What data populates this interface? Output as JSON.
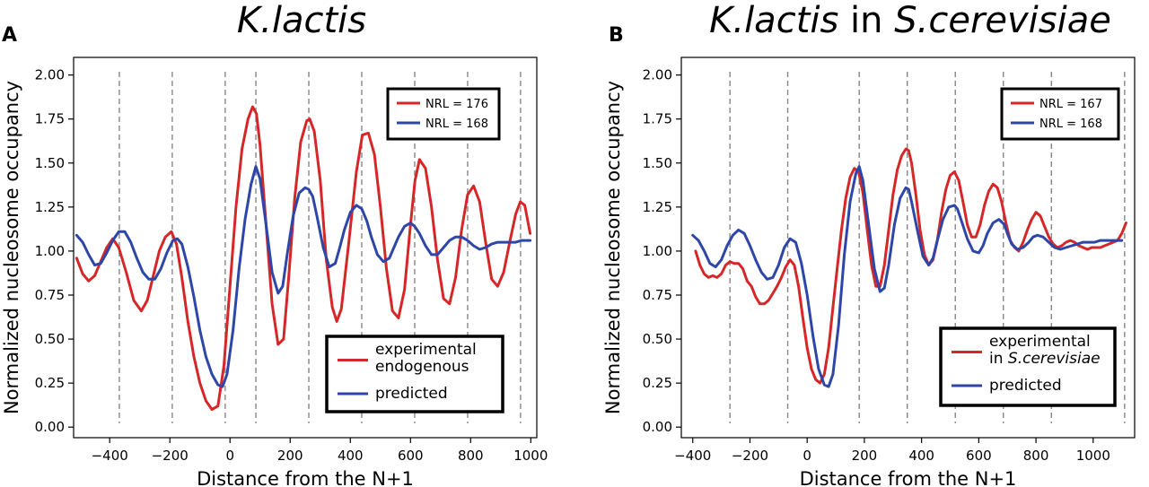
{
  "figure_title": "Nucleosome occupancy profiles",
  "chart_data": [
    {
      "type": "line",
      "panel_label": "A",
      "title_parts": [
        {
          "text": "K.lactis",
          "italic": true
        }
      ],
      "xlabel": "Distance from the N+1",
      "ylabel": "Normalized nucleosome occupancy",
      "xlim": [
        -520,
        1020
      ],
      "ylim": [
        -0.06,
        2.1
      ],
      "xticks": [
        -400,
        -200,
        0,
        200,
        400,
        600,
        800,
        1000
      ],
      "xtick_labels": [
        "−400",
        "−200",
        "0",
        "200",
        "400",
        "600",
        "800",
        "1000"
      ],
      "yticks": [
        0.0,
        0.25,
        0.5,
        0.75,
        1.0,
        1.25,
        1.5,
        1.75,
        2.0
      ],
      "ytick_labels": [
        "0.00",
        "0.25",
        "0.50",
        "0.75",
        "1.00",
        "1.25",
        "1.50",
        "1.75",
        "2.00"
      ],
      "vlines": [
        -368,
        -192,
        -16,
        86,
        262,
        438,
        614,
        790,
        966
      ],
      "nrl_legend": [
        {
          "label": "NRL = 176",
          "color": "#d62728"
        },
        {
          "label": "NRL = 168",
          "color": "#2e46a8"
        }
      ],
      "series": [
        {
          "name": "experimental",
          "legend_lines": [
            {
              "parts": [
                {
                  "text": "experimental",
                  "italic": false
                }
              ]
            },
            {
              "parts": [
                {
                  "text": "endogenous",
                  "italic": false
                }
              ]
            }
          ],
          "color": "#d62728",
          "x": [
            -510,
            -490,
            -470,
            -450,
            -430,
            -410,
            -390,
            -370,
            -345,
            -320,
            -295,
            -275,
            -255,
            -235,
            -215,
            -195,
            -178,
            -160,
            -140,
            -120,
            -100,
            -80,
            -60,
            -40,
            -20,
            0,
            20,
            40,
            60,
            75,
            88,
            100,
            120,
            140,
            160,
            178,
            195,
            215,
            235,
            255,
            265,
            280,
            300,
            320,
            340,
            355,
            370,
            395,
            420,
            440,
            460,
            480,
            500,
            520,
            540,
            560,
            580,
            600,
            615,
            630,
            650,
            670,
            690,
            710,
            730,
            750,
            770,
            790,
            810,
            830,
            850,
            870,
            890,
            910,
            930,
            950,
            965,
            980,
            998
          ],
          "values": [
            0.96,
            0.87,
            0.83,
            0.86,
            0.94,
            1.02,
            1.07,
            1.02,
            0.88,
            0.72,
            0.66,
            0.72,
            0.86,
            1.0,
            1.08,
            1.11,
            1.04,
            0.85,
            0.6,
            0.4,
            0.25,
            0.15,
            0.1,
            0.12,
            0.35,
            0.8,
            1.25,
            1.58,
            1.75,
            1.82,
            1.78,
            1.6,
            1.15,
            0.7,
            0.47,
            0.5,
            0.85,
            1.3,
            1.62,
            1.74,
            1.75,
            1.68,
            1.4,
            0.95,
            0.68,
            0.6,
            0.67,
            1.05,
            1.45,
            1.66,
            1.67,
            1.55,
            1.25,
            0.9,
            0.66,
            0.62,
            0.78,
            1.15,
            1.4,
            1.52,
            1.47,
            1.25,
            0.95,
            0.73,
            0.7,
            0.85,
            1.12,
            1.32,
            1.37,
            1.28,
            1.05,
            0.84,
            0.8,
            0.88,
            1.05,
            1.21,
            1.28,
            1.26,
            1.1
          ]
        },
        {
          "name": "predicted",
          "legend_lines": [
            {
              "parts": [
                {
                  "text": "predicted",
                  "italic": false
                }
              ]
            }
          ],
          "color": "#2e46a8",
          "x": [
            -510,
            -490,
            -470,
            -450,
            -430,
            -410,
            -390,
            -370,
            -350,
            -330,
            -310,
            -290,
            -270,
            -250,
            -230,
            -210,
            -190,
            -175,
            -160,
            -140,
            -120,
            -100,
            -80,
            -60,
            -40,
            -25,
            -10,
            10,
            30,
            50,
            70,
            86,
            100,
            120,
            140,
            160,
            175,
            190,
            210,
            230,
            250,
            262,
            275,
            290,
            310,
            330,
            350,
            365,
            380,
            400,
            420,
            438,
            455,
            470,
            490,
            510,
            530,
            545,
            560,
            580,
            600,
            614,
            630,
            650,
            670,
            690,
            710,
            730,
            750,
            770,
            790,
            810,
            830,
            850,
            870,
            890,
            910,
            930,
            950,
            970,
            998
          ],
          "values": [
            1.09,
            1.05,
            0.98,
            0.92,
            0.93,
            0.99,
            1.06,
            1.11,
            1.11,
            1.05,
            0.96,
            0.88,
            0.84,
            0.84,
            0.9,
            0.99,
            1.06,
            1.07,
            1.04,
            0.91,
            0.74,
            0.55,
            0.4,
            0.3,
            0.24,
            0.23,
            0.3,
            0.55,
            0.9,
            1.18,
            1.38,
            1.48,
            1.41,
            1.15,
            0.88,
            0.76,
            0.8,
            0.98,
            1.2,
            1.33,
            1.36,
            1.35,
            1.31,
            1.19,
            1.02,
            0.91,
            0.93,
            1.02,
            1.12,
            1.22,
            1.26,
            1.24,
            1.17,
            1.08,
            0.98,
            0.94,
            0.96,
            1.02,
            1.08,
            1.14,
            1.16,
            1.14,
            1.1,
            1.03,
            0.98,
            0.98,
            1.02,
            1.06,
            1.08,
            1.08,
            1.06,
            1.03,
            1.01,
            1.02,
            1.04,
            1.05,
            1.05,
            1.05,
            1.05,
            1.06,
            1.06
          ]
        }
      ]
    },
    {
      "type": "line",
      "panel_label": "B",
      "title_parts": [
        {
          "text": "K.lactis",
          "italic": true
        },
        {
          "text": " in ",
          "italic": false
        },
        {
          "text": "S.cerevisiae",
          "italic": true
        }
      ],
      "xlabel": "Distance from the N+1",
      "ylabel": "Normalized nucleosome occupancy",
      "xlim": [
        -440,
        1145
      ],
      "ylim": [
        -0.06,
        2.1
      ],
      "xticks": [
        -400,
        -200,
        0,
        200,
        400,
        600,
        800,
        1000
      ],
      "xtick_labels": [
        "−400",
        "−200",
        "0",
        "200",
        "400",
        "600",
        "800",
        "1000"
      ],
      "yticks": [
        0.0,
        0.25,
        0.5,
        0.75,
        1.0,
        1.25,
        1.5,
        1.75,
        2.0
      ],
      "ytick_labels": [
        "0.00",
        "0.25",
        "0.50",
        "0.75",
        "1.00",
        "1.25",
        "1.50",
        "1.75",
        "2.00"
      ],
      "vlines": [
        -270,
        -68,
        182,
        350,
        518,
        686,
        854,
        1110
      ],
      "nrl_legend": [
        {
          "label": "NRL = 167",
          "color": "#d62728"
        },
        {
          "label": "NRL = 168",
          "color": "#2e46a8"
        }
      ],
      "series": [
        {
          "name": "experimental",
          "legend_lines": [
            {
              "parts": [
                {
                  "text": "experimental",
                  "italic": false
                }
              ]
            },
            {
              "parts": [
                {
                  "text": "in ",
                  "italic": false
                },
                {
                  "text": "S.cerevisiae",
                  "italic": true
                }
              ]
            }
          ],
          "color": "#d62728",
          "x": [
            -390,
            -375,
            -360,
            -345,
            -330,
            -315,
            -300,
            -285,
            -270,
            -255,
            -240,
            -225,
            -210,
            -195,
            -180,
            -165,
            -150,
            -135,
            -120,
            -105,
            -90,
            -75,
            -60,
            -45,
            -30,
            -15,
            0,
            15,
            30,
            45,
            60,
            75,
            90,
            105,
            120,
            135,
            150,
            165,
            180,
            195,
            210,
            225,
            240,
            255,
            270,
            285,
            300,
            315,
            330,
            345,
            355,
            365,
            380,
            395,
            410,
            425,
            440,
            455,
            470,
            485,
            500,
            515,
            530,
            545,
            560,
            575,
            590,
            605,
            620,
            635,
            650,
            665,
            680,
            695,
            710,
            725,
            740,
            755,
            770,
            785,
            800,
            815,
            830,
            845,
            860,
            875,
            890,
            905,
            920,
            935,
            950,
            965,
            980,
            995,
            1010,
            1025,
            1040,
            1055,
            1070,
            1085,
            1100,
            1115
          ],
          "values": [
            1.0,
            0.92,
            0.87,
            0.85,
            0.86,
            0.85,
            0.87,
            0.92,
            0.94,
            0.93,
            0.93,
            0.9,
            0.83,
            0.8,
            0.74,
            0.7,
            0.7,
            0.72,
            0.76,
            0.8,
            0.85,
            0.91,
            0.95,
            0.92,
            0.8,
            0.62,
            0.45,
            0.33,
            0.27,
            0.25,
            0.3,
            0.45,
            0.68,
            0.9,
            1.12,
            1.3,
            1.42,
            1.47,
            1.45,
            1.33,
            1.12,
            0.92,
            0.8,
            0.8,
            0.92,
            1.12,
            1.32,
            1.46,
            1.54,
            1.58,
            1.57,
            1.5,
            1.32,
            1.12,
            0.98,
            0.92,
            0.95,
            1.06,
            1.22,
            1.35,
            1.43,
            1.45,
            1.4,
            1.28,
            1.15,
            1.08,
            1.08,
            1.15,
            1.26,
            1.34,
            1.38,
            1.36,
            1.28,
            1.16,
            1.06,
            1.02,
            1.0,
            1.05,
            1.12,
            1.18,
            1.22,
            1.2,
            1.14,
            1.08,
            1.04,
            1.02,
            1.03,
            1.05,
            1.06,
            1.05,
            1.03,
            1.02,
            1.01,
            1.02,
            1.02,
            1.02,
            1.03,
            1.04,
            1.05,
            1.06,
            1.1,
            1.16
          ]
        },
        {
          "name": "predicted",
          "legend_lines": [
            {
              "parts": [
                {
                  "text": "predicted",
                  "italic": false
                }
              ]
            }
          ],
          "color": "#2e46a8",
          "x": [
            -400,
            -380,
            -360,
            -340,
            -320,
            -300,
            -280,
            -260,
            -240,
            -220,
            -200,
            -180,
            -160,
            -140,
            -120,
            -100,
            -80,
            -60,
            -40,
            -20,
            0,
            20,
            40,
            60,
            75,
            90,
            110,
            130,
            150,
            170,
            182,
            195,
            215,
            235,
            255,
            270,
            285,
            305,
            325,
            345,
            355,
            365,
            385,
            405,
            425,
            440,
            455,
            475,
            495,
            515,
            525,
            540,
            560,
            580,
            600,
            615,
            630,
            650,
            670,
            690,
            700,
            715,
            735,
            755,
            775,
            790,
            805,
            825,
            845,
            865,
            885,
            905,
            925,
            945,
            965,
            985,
            1005,
            1025,
            1045,
            1065,
            1085,
            1100
          ],
          "values": [
            1.09,
            1.06,
            1.0,
            0.93,
            0.91,
            0.95,
            1.03,
            1.09,
            1.12,
            1.1,
            1.03,
            0.95,
            0.88,
            0.84,
            0.85,
            0.92,
            1.02,
            1.07,
            1.05,
            0.93,
            0.75,
            0.52,
            0.33,
            0.24,
            0.23,
            0.3,
            0.58,
            0.98,
            1.28,
            1.44,
            1.48,
            1.4,
            1.15,
            0.9,
            0.77,
            0.79,
            0.92,
            1.15,
            1.3,
            1.36,
            1.35,
            1.28,
            1.12,
            0.97,
            0.92,
            0.96,
            1.06,
            1.18,
            1.25,
            1.26,
            1.24,
            1.17,
            1.07,
            1.0,
            0.99,
            1.03,
            1.1,
            1.16,
            1.18,
            1.15,
            1.1,
            1.04,
            1.01,
            1.02,
            1.05,
            1.08,
            1.09,
            1.08,
            1.05,
            1.02,
            1.01,
            1.02,
            1.03,
            1.04,
            1.05,
            1.05,
            1.05,
            1.06,
            1.06,
            1.06,
            1.06,
            1.06
          ]
        }
      ]
    }
  ]
}
